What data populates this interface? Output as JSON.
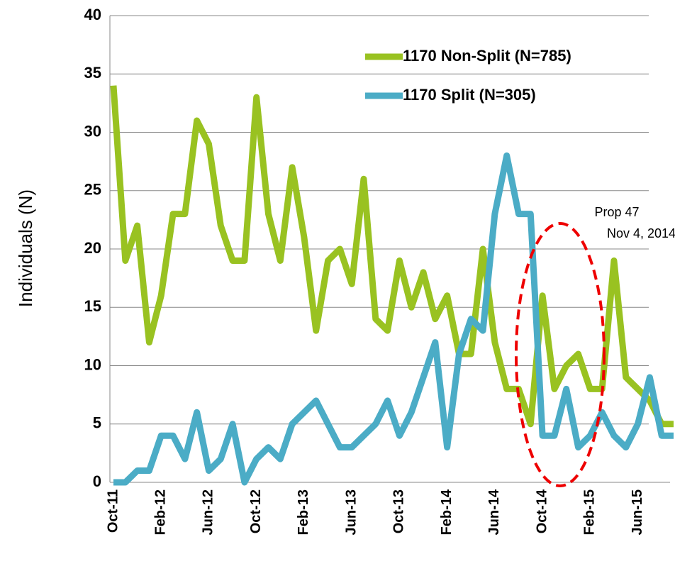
{
  "chart_data": {
    "type": "line",
    "y_label": "Individuals (N)",
    "categories": [
      "Oct-11",
      null,
      null,
      null,
      "Feb-12",
      null,
      null,
      null,
      "Jun-12",
      null,
      null,
      null,
      "Oct-12",
      null,
      null,
      null,
      "Feb-13",
      null,
      null,
      null,
      "Jun-13",
      null,
      null,
      null,
      "Oct-13",
      null,
      null,
      null,
      "Feb-14",
      null,
      null,
      null,
      "Jun-14",
      null,
      null,
      null,
      "Oct-14",
      null,
      null,
      null,
      "Feb-15",
      null,
      null,
      null,
      "Jun-15",
      null,
      null,
      null
    ],
    "series": [
      {
        "name": "1170 Non-Split (N=785)",
        "color": "#99c221",
        "values": [
          34,
          19,
          22,
          12,
          16,
          23,
          23,
          31,
          29,
          22,
          19,
          19,
          33,
          23,
          19,
          27,
          21,
          13,
          19,
          20,
          17,
          26,
          14,
          13,
          19,
          15,
          18,
          14,
          16,
          11,
          11,
          20,
          12,
          8,
          8,
          5,
          16,
          8,
          10,
          11,
          8,
          8,
          19,
          9,
          8,
          7,
          5,
          5
        ]
      },
      {
        "name": "1170 Split (N=305)",
        "color": "#4bacc6",
        "values": [
          0,
          0,
          1,
          1,
          4,
          4,
          2,
          6,
          1,
          2,
          5,
          0,
          2,
          3,
          2,
          5,
          6,
          7,
          5,
          3,
          3,
          4,
          5,
          7,
          4,
          6,
          9,
          12,
          3,
          11,
          14,
          13,
          23,
          28,
          23,
          23,
          4,
          4,
          8,
          3,
          4,
          6,
          4,
          3,
          5,
          9,
          4,
          4
        ]
      }
    ],
    "ylim": [
      0,
      40
    ],
    "yticks": [
      0,
      5,
      10,
      15,
      20,
      25,
      30,
      35,
      40
    ],
    "grid": true,
    "annotations": [
      "Prop 47",
      "Nov 4, 2014"
    ]
  }
}
